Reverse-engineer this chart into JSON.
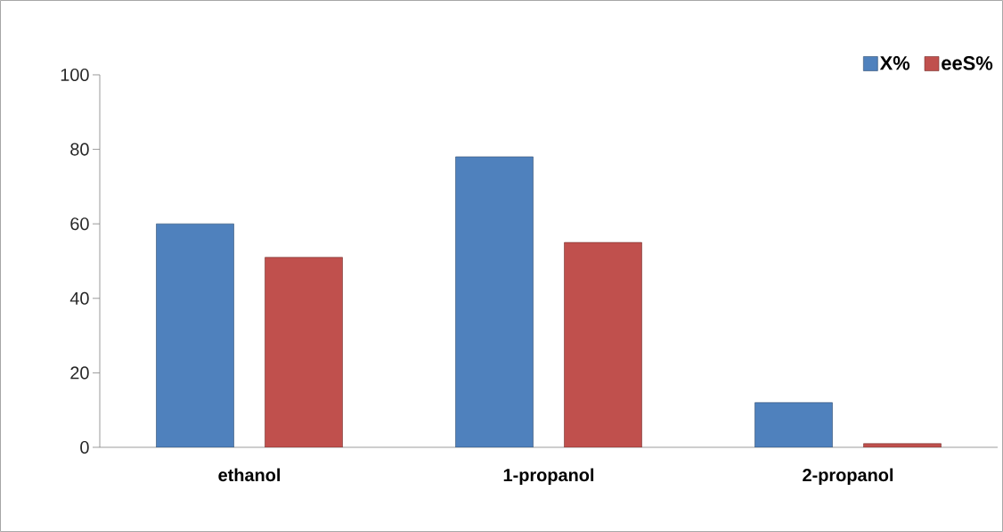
{
  "chart_data": {
    "type": "bar",
    "categories": [
      "ethanol",
      "1-propanol",
      "2-propanol"
    ],
    "series": [
      {
        "name": "X%",
        "color": "#4f81bd",
        "values": [
          60,
          78,
          12
        ]
      },
      {
        "name": "eeS%",
        "color": "#c0504d",
        "values": [
          51,
          55,
          1
        ]
      }
    ],
    "ylim": [
      0,
      100
    ],
    "yticks": [
      0,
      20,
      40,
      60,
      80,
      100
    ],
    "grid": false,
    "legend": "top right"
  }
}
